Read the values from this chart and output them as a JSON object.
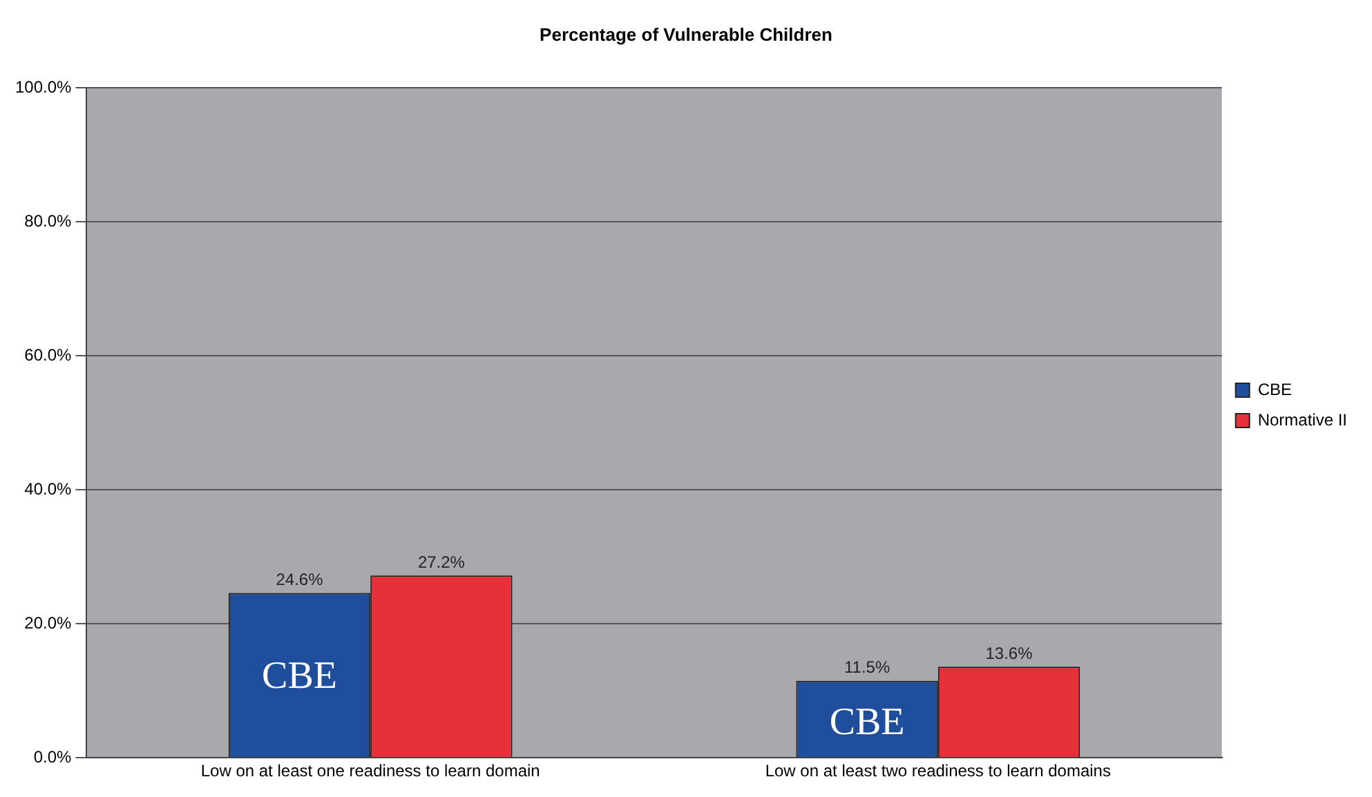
{
  "chart_data": {
    "type": "bar",
    "title": "Percentage of Vulnerable Children",
    "categories": [
      "Low on at least one readiness to learn domain",
      "Low on at least two readiness to learn domains"
    ],
    "series": [
      {
        "name": "CBE",
        "color": "#1f4e9c",
        "values": [
          24.6,
          11.5
        ]
      },
      {
        "name": "Normative II",
        "color": "#e8303a",
        "values": [
          27.2,
          13.6
        ]
      }
    ],
    "ylim": [
      0,
      100
    ],
    "yticks": [
      {
        "value": 0,
        "label": "0.0%"
      },
      {
        "value": 20,
        "label": "20.0%"
      },
      {
        "value": 40,
        "label": "40.0%"
      },
      {
        "value": 60,
        "label": "60.0%"
      },
      {
        "value": 80,
        "label": "80.0%"
      },
      {
        "value": 100,
        "label": "100.0%"
      }
    ],
    "grid": "y",
    "legend": "right",
    "value_labels": [
      [
        "24.6%",
        "11.5%"
      ],
      [
        "27.2%",
        "13.6%"
      ]
    ],
    "annotations": [
      {
        "text": "CBE",
        "x": "Low on at least one readiness to learn domain",
        "y": 12
      },
      {
        "text": "CBE",
        "x": "Low on at least two readiness to learn domains",
        "y": 5
      }
    ]
  }
}
